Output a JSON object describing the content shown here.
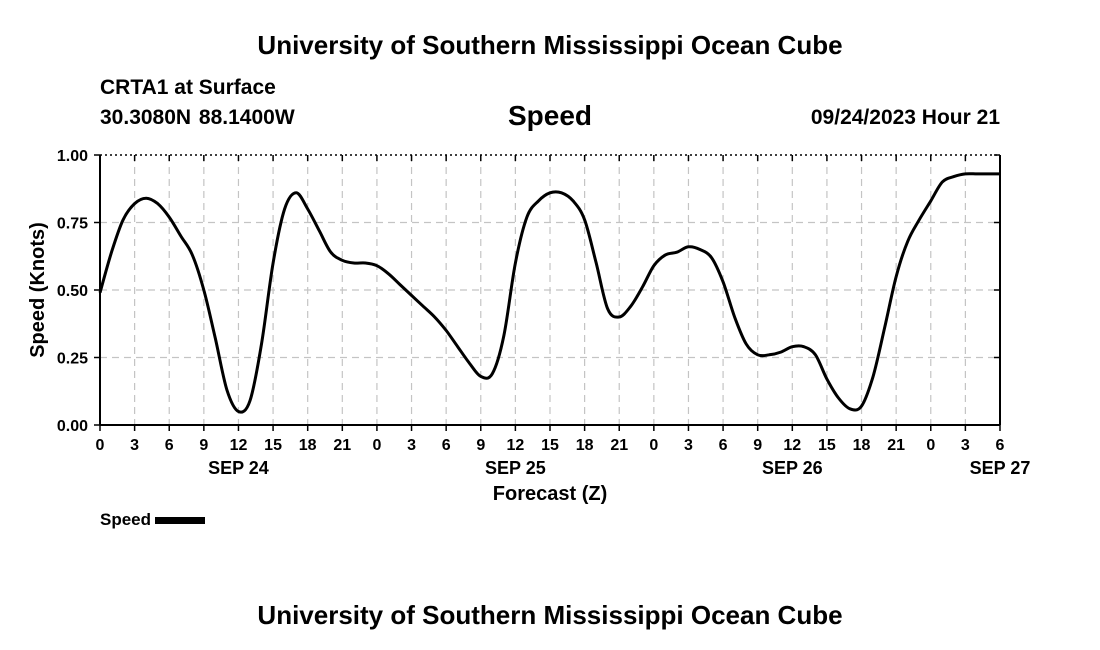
{
  "header": {
    "title": "University of Southern Mississippi Ocean Cube",
    "station": "CRTA1 at Surface",
    "coords": "30.3080N  88.1400W",
    "parameter": "Speed",
    "datetime": "09/24/2023 Hour 21"
  },
  "footer": {
    "title": "University of Southern Mississippi Ocean Cube"
  },
  "chart_data": {
    "type": "line",
    "title": "Speed",
    "xlabel": "Forecast (Z)",
    "ylabel": "Speed (Knots)",
    "ylim": [
      0,
      1
    ],
    "y_ticks": [
      "0.00",
      "0.25",
      "0.50",
      "0.75",
      "1.00"
    ],
    "x_tick_labels": [
      "0",
      "3",
      "6",
      "9",
      "12",
      "15",
      "18",
      "21",
      "0",
      "3",
      "6",
      "9",
      "12",
      "15",
      "18",
      "21",
      "0",
      "3",
      "6",
      "9",
      "12",
      "15",
      "18",
      "21",
      "0",
      "3",
      "6"
    ],
    "date_labels": [
      {
        "label": "SEP 24",
        "hour_index": 12
      },
      {
        "label": "SEP 25",
        "hour_index": 36
      },
      {
        "label": "SEP 26",
        "hour_index": 60
      },
      {
        "label": "SEP 27",
        "hour_index": 78
      }
    ],
    "grid": true,
    "legend": {
      "placement": "bottom-left",
      "label": "Speed"
    },
    "series": [
      {
        "name": "Speed",
        "color": "#000000",
        "x_hours": [
          0,
          1,
          2,
          3,
          4,
          5,
          6,
          7,
          8,
          9,
          10,
          11,
          12,
          13,
          14,
          15,
          16,
          17,
          18,
          19,
          20,
          21,
          22,
          23,
          24,
          25,
          26,
          27,
          28,
          29,
          30,
          31,
          32,
          33,
          34,
          35,
          36,
          37,
          38,
          39,
          40,
          41,
          42,
          43,
          44,
          45,
          46,
          47,
          48,
          49,
          50,
          51,
          52,
          53,
          54,
          55,
          56,
          57,
          58,
          59,
          60,
          61,
          62,
          63,
          64,
          65,
          66,
          67,
          68,
          69,
          70,
          71,
          72,
          73,
          74,
          75,
          76,
          77,
          78
        ],
        "values": [
          0.49,
          0.64,
          0.76,
          0.82,
          0.84,
          0.82,
          0.77,
          0.7,
          0.63,
          0.5,
          0.32,
          0.13,
          0.05,
          0.09,
          0.3,
          0.6,
          0.8,
          0.86,
          0.8,
          0.72,
          0.64,
          0.61,
          0.6,
          0.6,
          0.59,
          0.56,
          0.52,
          0.48,
          0.44,
          0.4,
          0.35,
          0.29,
          0.23,
          0.18,
          0.19,
          0.33,
          0.6,
          0.77,
          0.83,
          0.86,
          0.86,
          0.83,
          0.76,
          0.6,
          0.43,
          0.4,
          0.44,
          0.51,
          0.59,
          0.63,
          0.64,
          0.66,
          0.65,
          0.62,
          0.53,
          0.4,
          0.3,
          0.26,
          0.26,
          0.27,
          0.29,
          0.29,
          0.26,
          0.17,
          0.1,
          0.06,
          0.07,
          0.18,
          0.36,
          0.55,
          0.68,
          0.76,
          0.83,
          0.9,
          0.92,
          0.93,
          0.93,
          0.93,
          0.93
        ]
      }
    ]
  }
}
